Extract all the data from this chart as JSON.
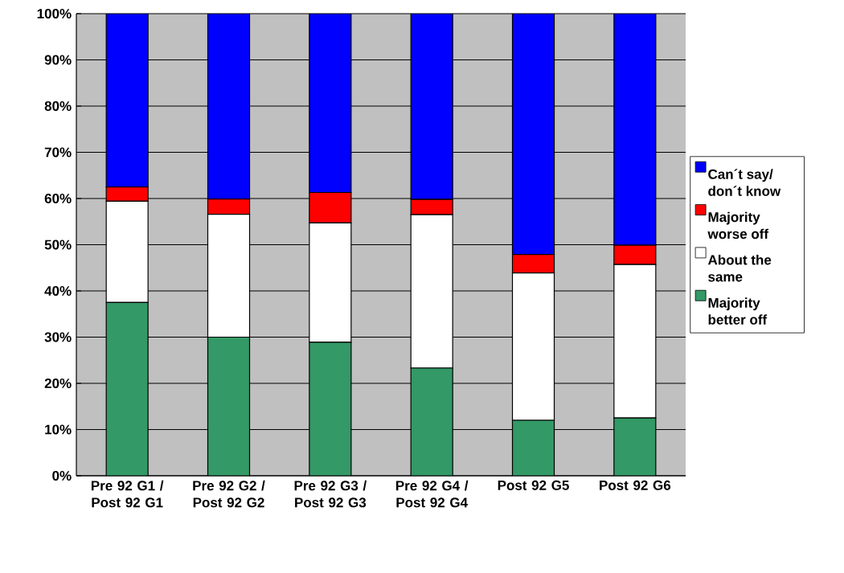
{
  "chart_data": {
    "type": "bar",
    "stacked": true,
    "categories": [
      "Pre 92 G1 / Post 92 G1",
      "Pre 92 G2 / Post 92 G2",
      "Pre 92 G3 / Post 92 G3",
      "Pre 92 G4 / Post 92 G4",
      "Post 92 G5",
      "Post 92 G6"
    ],
    "series": [
      {
        "name": "Majority better off",
        "color": "#339966",
        "values": [
          37.5,
          30,
          28.9,
          23.3,
          12,
          12.5
        ]
      },
      {
        "name": "About the same",
        "color": "#ffffff",
        "values": [
          21.9,
          26.6,
          25.8,
          33.2,
          31.9,
          33.2
        ]
      },
      {
        "name": "Majority worse off",
        "color": "#ff0000",
        "values": [
          3.1,
          3.3,
          6.6,
          3.3,
          4,
          4.2
        ]
      },
      {
        "name": "Can´t say/ don´t know",
        "color": "#0000ff",
        "values": [
          37.5,
          40.1,
          38.7,
          40.2,
          52.1,
          50.1
        ]
      }
    ],
    "ylim": [
      0,
      100
    ],
    "yticks": [
      {
        "value": 0,
        "label": "0%"
      },
      {
        "value": 10,
        "label": "10%"
      },
      {
        "value": 20,
        "label": "20%"
      },
      {
        "value": 30,
        "label": "30%"
      },
      {
        "value": 40,
        "label": "40%"
      },
      {
        "value": 50,
        "label": "50%"
      },
      {
        "value": 60,
        "label": "60%"
      },
      {
        "value": 70,
        "label": "70%"
      },
      {
        "value": 80,
        "label": "80%"
      },
      {
        "value": 90,
        "label": "90%"
      },
      {
        "value": 100,
        "label": "100%"
      }
    ],
    "grid": "y",
    "legend": "right"
  }
}
